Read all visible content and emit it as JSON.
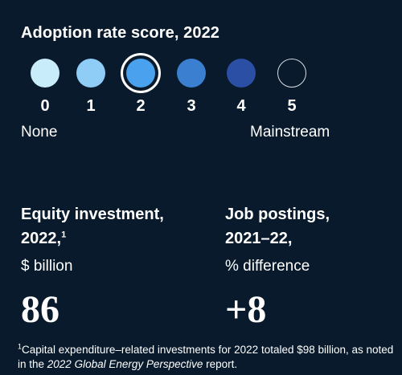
{
  "header": {
    "title": "Adoption rate score, 2022"
  },
  "adoption_scale": {
    "selected": 2,
    "levels": [
      {
        "label": "0",
        "color": "#c9ecfb"
      },
      {
        "label": "1",
        "color": "#8fccf6"
      },
      {
        "label": "2",
        "color": "#4aa2ee"
      },
      {
        "label": "3",
        "color": "#3b7fd1"
      },
      {
        "label": "4",
        "color": "#2c4fa6"
      },
      {
        "label": "5",
        "color": ""
      }
    ],
    "low_label": "None",
    "high_label": "Mainstream"
  },
  "equity": {
    "label_line1": "Equity investment,",
    "label_line2": "2022,",
    "footnote_ref": "1",
    "unit": "$ billion",
    "value": "86"
  },
  "jobs": {
    "label_line1": "Job postings,",
    "label_line2": "2021–22,",
    "unit": "% difference",
    "value": "+8"
  },
  "footnote": {
    "marker": "1",
    "text_before": "Capital expenditure–related investments for 2022 totaled $98 billion, as noted in the ",
    "report_title": "2022 Global Energy Perspective",
    "text_after": " report."
  }
}
